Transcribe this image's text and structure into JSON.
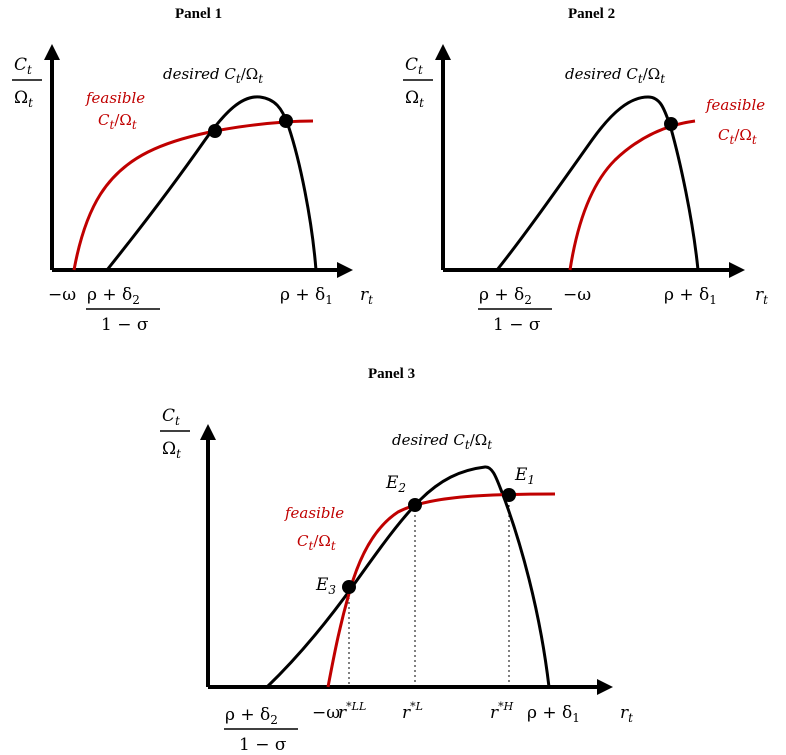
{
  "panels": [
    {
      "title": "Panel 1",
      "y_axis": {
        "num": "C",
        "num_sub": "t",
        "den": "Ω",
        "den_sub": "t"
      },
      "x_axis": {
        "label": "r",
        "label_sub": "t"
      },
      "desired_label": {
        "text": "desired C",
        "sub": "t",
        "tail": "/Ω",
        "tail_sub": "t"
      },
      "feasible_label": {
        "line1": "feasible",
        "line2": "C",
        "line2_sub": "t",
        "line2_tail": "/Ω",
        "line2_tail_sub": "t"
      },
      "ticks": {
        "minus_omega": "−ω",
        "frac_num": "ρ + δ",
        "frac_num_sub": "2",
        "frac_den": "1 − σ",
        "rho_delta1": "ρ + δ",
        "rho_delta1_sub": "1"
      }
    },
    {
      "title": "Panel 2",
      "y_axis": {
        "num": "C",
        "num_sub": "t",
        "den": "Ω",
        "den_sub": "t"
      },
      "x_axis": {
        "label": "r",
        "label_sub": "t"
      },
      "desired_label": {
        "text": "desired C",
        "sub": "t",
        "tail": "/Ω",
        "tail_sub": "t"
      },
      "feasible_label": {
        "line1": "feasible",
        "line2": "C",
        "line2_sub": "t",
        "line2_tail": "/Ω",
        "line2_tail_sub": "t"
      },
      "ticks": {
        "minus_omega": "−ω",
        "frac_num": "ρ + δ",
        "frac_num_sub": "2",
        "frac_den": "1 − σ",
        "rho_delta1": "ρ + δ",
        "rho_delta1_sub": "1"
      }
    },
    {
      "title": "Panel 3",
      "y_axis": {
        "num": "C",
        "num_sub": "t",
        "den": "Ω",
        "den_sub": "t"
      },
      "x_axis": {
        "label": "r",
        "label_sub": "t"
      },
      "desired_label": {
        "text": "desired C",
        "sub": "t",
        "tail": "/Ω",
        "tail_sub": "t"
      },
      "feasible_label": {
        "line1": "feasible",
        "line2": "C",
        "line2_sub": "t",
        "line2_tail": "/Ω",
        "line2_tail_sub": "t"
      },
      "ticks": {
        "minus_omega": "−ω",
        "frac_num": "ρ + δ",
        "frac_num_sub": "2",
        "frac_den": "1 − σ",
        "rho_delta1": "ρ + δ",
        "rho_delta1_sub": "1",
        "r_ll": "r",
        "r_ll_sup": "*LL",
        "r_l": "r",
        "r_l_sup": "*L",
        "r_h": "r",
        "r_h_sup": "*H"
      },
      "points": [
        {
          "label": "E",
          "sub": "1"
        },
        {
          "label": "E",
          "sub": "2"
        },
        {
          "label": "E",
          "sub": "3"
        }
      ]
    }
  ],
  "colors": {
    "desired": "#000000",
    "feasible": "#c00000",
    "axes": "#000000"
  }
}
